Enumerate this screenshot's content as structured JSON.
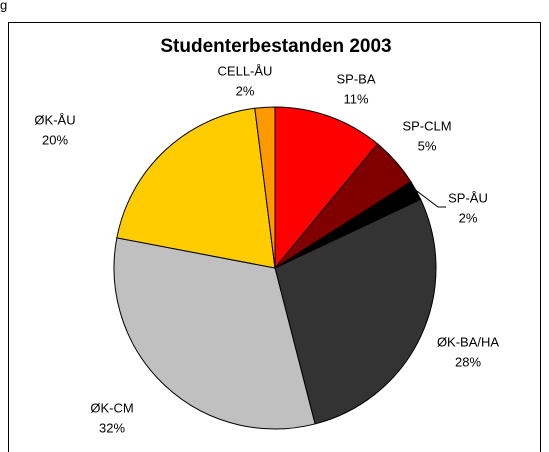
{
  "caption": "g",
  "chart_data": {
    "type": "pie",
    "title": "Studenterbestanden 2003",
    "categories": [
      "SP-BA",
      "SP-CLM",
      "SP-ÅU",
      "ØK-BA/HA",
      "ØK-CM",
      "ØK-ÅU",
      "CELL-ÅU"
    ],
    "values": [
      11,
      5,
      2,
      28,
      32,
      20,
      2
    ],
    "value_labels": [
      "11%",
      "5%",
      "2%",
      "28%",
      "32%",
      "20%",
      "2%"
    ],
    "colors": [
      "#ff0000",
      "#800000",
      "#000000",
      "#333333",
      "#c0c0c0",
      "#ffcc00",
      "#ff9900"
    ]
  }
}
